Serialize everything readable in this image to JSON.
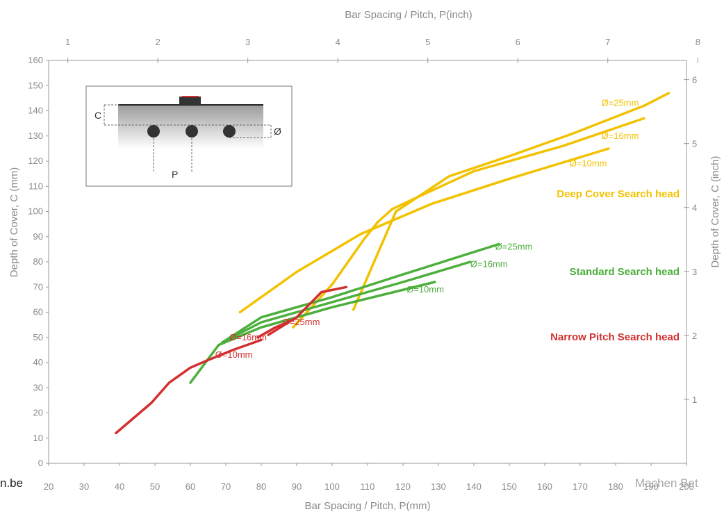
{
  "colors": {
    "deep": "#f2c200",
    "standard": "#4caf3c",
    "narrow": "#d32f2f",
    "axis": "#8a8a8a"
  },
  "watermark": {
    "left": "n.be",
    "right": "Machen Bet"
  },
  "inset": {
    "cover_label": "C",
    "pitch_label": "P",
    "diameter_label": "Ø"
  },
  "chart_data": {
    "type": "line",
    "xlabel": "Bar Spacing / Pitch, P(mm)",
    "ylabel": "Depth of Cover, C (mm)",
    "x2label": "Bar Spacing / Pitch, P(inch)",
    "y2label": "Depth of Cover, C (inch)",
    "xlim": [
      20,
      200
    ],
    "ylim": [
      0,
      160
    ],
    "x2lim": [
      0.787,
      7.874
    ],
    "y2lim": [
      0,
      6.3
    ],
    "xticks": [
      20,
      30,
      40,
      50,
      60,
      70,
      80,
      90,
      100,
      110,
      120,
      130,
      140,
      150,
      160,
      170,
      180,
      190,
      200
    ],
    "yticks": [
      0,
      10,
      20,
      30,
      40,
      50,
      60,
      70,
      80,
      90,
      100,
      110,
      120,
      130,
      140,
      150,
      160
    ],
    "x2ticks": [
      1,
      2,
      3,
      4,
      5,
      6,
      7,
      8
    ],
    "y2ticks": [
      1,
      2,
      3,
      4,
      5,
      6
    ],
    "grid": false,
    "groups": [
      {
        "name": "Deep Cover Search head",
        "color_key": "deep"
      },
      {
        "name": "Standard Search head",
        "color_key": "standard"
      },
      {
        "name": "Narrow Pitch Search head",
        "color_key": "narrow"
      }
    ],
    "series": [
      {
        "name": "Ø=25mm",
        "group": "Deep Cover Search head",
        "color_key": "deep",
        "x": [
          106,
          118,
          133,
          150,
          168,
          188,
          195
        ],
        "y": [
          61,
          100,
          114,
          122,
          131,
          142,
          147
        ],
        "label_at": [
          176,
          143
        ]
      },
      {
        "name": "Ø=16mm",
        "group": "Deep Cover Search head",
        "color_key": "deep",
        "x": [
          89,
          100,
          109,
          113,
          117,
          123,
          140,
          165,
          188
        ],
        "y": [
          54,
          71,
          89,
          96,
          101,
          105,
          116,
          126,
          137
        ],
        "label_at": [
          176,
          130
        ]
      },
      {
        "name": "Ø=10mm",
        "group": "Deep Cover Search head",
        "color_key": "deep",
        "x": [
          74,
          90,
          108,
          128,
          150,
          178
        ],
        "y": [
          60,
          76,
          91,
          103,
          113,
          125
        ],
        "label_at": [
          167,
          119
        ]
      },
      {
        "name": "Ø=25mm",
        "group": "Standard Search head",
        "color_key": "standard",
        "x": [
          69,
          80,
          100,
          120,
          147
        ],
        "y": [
          48,
          58,
          66,
          75,
          87
        ],
        "label_at": [
          146,
          86
        ]
      },
      {
        "name": "Ø=16mm",
        "group": "Standard Search head",
        "color_key": "standard",
        "x": [
          69,
          80,
          100,
          120,
          139
        ],
        "y": [
          48,
          56,
          64,
          72,
          80
        ],
        "label_at": [
          139,
          79
        ]
      },
      {
        "name": "Ø=10mm",
        "group": "Standard Search head",
        "color_key": "standard",
        "x": [
          60,
          68,
          80,
          100,
          129
        ],
        "y": [
          32,
          47,
          54,
          62,
          72
        ],
        "label_at": [
          121,
          69
        ]
      },
      {
        "name": "Ø=25mm",
        "group": "Narrow Pitch Search head",
        "color_key": "narrow",
        "x": [
          82,
          90,
          97,
          104
        ],
        "y": [
          51,
          58,
          68,
          70
        ],
        "label_at": [
          86,
          56
        ]
      },
      {
        "name": "Ø=16mm",
        "group": "Narrow Pitch Search head",
        "color_key": "narrow",
        "x": [
          79,
          84,
          89
        ],
        "y": [
          50,
          54,
          57
        ],
        "label_at": [
          71,
          50
        ]
      },
      {
        "name": "Ø=10mm",
        "group": "Narrow Pitch Search head",
        "color_key": "narrow",
        "x": [
          39,
          49,
          54,
          60,
          65,
          72,
          80
        ],
        "y": [
          12,
          24,
          32,
          38,
          41,
          45,
          49
        ],
        "label_at": [
          67,
          43
        ]
      }
    ]
  }
}
